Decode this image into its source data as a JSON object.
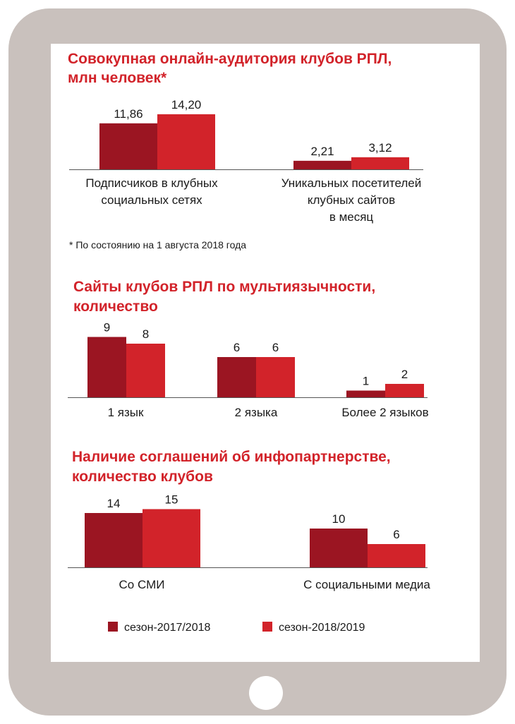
{
  "colors": {
    "season_1": "#9b1522",
    "season_2": "#d2232a",
    "frame": "#c9c1bd"
  },
  "legend": {
    "series_1": "сезон-2017/2018",
    "series_2": "сезон-2018/2019"
  },
  "chart_data": [
    {
      "type": "bar",
      "title_lines": [
        "Совокупная онлайн-аудитория клубов РПЛ,",
        "млн человек*"
      ],
      "categories": [
        "Подписчиков в клубных социальных сетях",
        "Уникальных посетителей клубных сайтов в месяц"
      ],
      "category_lines": [
        [
          "Подписчиков в клубных",
          "социальных сетях"
        ],
        [
          "Уникальных посетителей",
          "клубных сайтов",
          "в месяц"
        ]
      ],
      "series": [
        {
          "name": "сезон-2017/2018",
          "values": [
            11.86,
            2.21
          ],
          "labels": [
            "11,86",
            "2,21"
          ]
        },
        {
          "name": "сезон-2018/2019",
          "values": [
            14.2,
            3.12
          ],
          "labels": [
            "14,20",
            "3,12"
          ]
        }
      ],
      "note": "* По состоянию на 1 августа 2018 года"
    },
    {
      "type": "bar",
      "title_lines": [
        "Сайты клубов РПЛ по мультиязычности,",
        "количество"
      ],
      "categories": [
        "1 язык",
        "2 языка",
        "Более 2 языков"
      ],
      "category_lines": [
        [
          "1 язык"
        ],
        [
          "2 языка"
        ],
        [
          "Более 2 языков"
        ]
      ],
      "series": [
        {
          "name": "сезон-2017/2018",
          "values": [
            9,
            6,
            1
          ],
          "labels": [
            "9",
            "6",
            "1"
          ]
        },
        {
          "name": "сезон-2018/2019",
          "values": [
            8,
            6,
            2
          ],
          "labels": [
            "8",
            "6",
            "2"
          ]
        }
      ]
    },
    {
      "type": "bar",
      "title_lines": [
        "Наличие соглашений об инфопартнерстве,",
        "количество клубов"
      ],
      "categories": [
        "Со СМИ",
        "С социальными медиа"
      ],
      "category_lines": [
        [
          "Со СМИ"
        ],
        [
          "С социальными медиа"
        ]
      ],
      "series": [
        {
          "name": "сезон-2017/2018",
          "values": [
            14,
            10
          ],
          "labels": [
            "14",
            "10"
          ]
        },
        {
          "name": "сезон-2018/2019",
          "values": [
            15,
            6
          ],
          "labels": [
            "15",
            "6"
          ]
        }
      ]
    }
  ]
}
